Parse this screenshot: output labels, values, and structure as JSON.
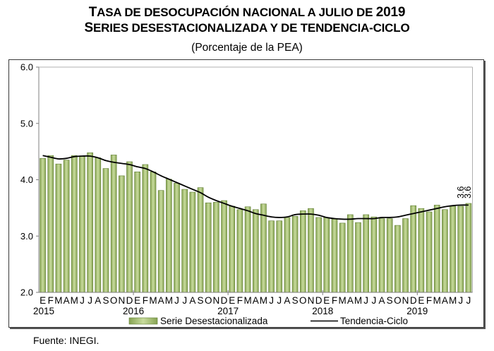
{
  "header": {
    "title_line1_first": "T",
    "title_line1_rest": "ASA DE DESOCUPACIÓN NACIONAL A JULIO DE ",
    "title_line1_year": "2019",
    "title_line2_first": "S",
    "title_line2_rest": "ERIES DESESTACIONALIZADA Y DE TENDENCIA-CICLO",
    "subtitle": "(Porcentaje de la PEA)"
  },
  "footer": {
    "source": "Fuente: INEGI."
  },
  "colors": {
    "bar_fill_light": "#c9dc9e",
    "bar_fill_dark": "#86a352",
    "bar_stroke": "#5f7d32",
    "trend_line": "#000000",
    "axis": "#7f7f7f"
  },
  "chart_data": {
    "type": "bar",
    "title": "Tasa de desocupación nacional a julio de 2019",
    "subtitle": "Series desestacionalizada y de tendencia-ciclo (Porcentaje de la PEA)",
    "xlabel": "",
    "ylabel": "",
    "ylim": [
      2.0,
      6.0
    ],
    "yticks": [
      "2.0",
      "3.0",
      "4.0",
      "5.0",
      "6.0"
    ],
    "ytick_values": [
      2.0,
      3.0,
      4.0,
      5.0,
      6.0
    ],
    "grid": false,
    "legend_position": "bottom",
    "month_letters": [
      "E",
      "F",
      "M",
      "A",
      "M",
      "J",
      "J",
      "A",
      "S",
      "O",
      "N",
      "D"
    ],
    "years": [
      "2015",
      "2016",
      "2017",
      "2018",
      "2019"
    ],
    "categories": [
      "E 2015",
      "F 2015",
      "M 2015",
      "A 2015",
      "M 2015",
      "J 2015",
      "J 2015",
      "A 2015",
      "S 2015",
      "O 2015",
      "N 2015",
      "D 2015",
      "E 2016",
      "F 2016",
      "M 2016",
      "A 2016",
      "M 2016",
      "J 2016",
      "J 2016",
      "A 2016",
      "S 2016",
      "O 2016",
      "N 2016",
      "D 2016",
      "E 2017",
      "F 2017",
      "M 2017",
      "A 2017",
      "M 2017",
      "J 2017",
      "J 2017",
      "A 2017",
      "S 2017",
      "O 2017",
      "N 2017",
      "D 2017",
      "E 2018",
      "F 2018",
      "M 2018",
      "A 2018",
      "M 2018",
      "J 2018",
      "J 2018",
      "A 2018",
      "S 2018",
      "O 2018",
      "N 2018",
      "D 2018",
      "E 2019",
      "F 2019",
      "M 2019",
      "A 2019",
      "M 2019",
      "J 2019",
      "J 2019"
    ],
    "series": [
      {
        "name": "Serie Desestacionalizada",
        "type": "bar",
        "values": [
          4.38,
          4.43,
          4.28,
          4.35,
          4.43,
          4.42,
          4.48,
          4.39,
          4.2,
          4.44,
          4.07,
          4.32,
          4.14,
          4.27,
          4.14,
          3.81,
          4.01,
          3.94,
          3.83,
          3.78,
          3.86,
          3.59,
          3.6,
          3.63,
          3.53,
          3.47,
          3.52,
          3.47,
          3.57,
          3.27,
          3.27,
          3.33,
          3.35,
          3.45,
          3.49,
          3.33,
          3.33,
          3.3,
          3.23,
          3.38,
          3.24,
          3.38,
          3.34,
          3.31,
          3.31,
          3.19,
          3.31,
          3.54,
          3.49,
          3.43,
          3.55,
          3.47,
          3.53,
          3.53,
          3.58
        ]
      },
      {
        "name": "Tendencia-Ciclo",
        "type": "line",
        "values": [
          4.43,
          4.4,
          4.37,
          4.38,
          4.41,
          4.42,
          4.42,
          4.39,
          4.34,
          4.31,
          4.29,
          4.27,
          4.23,
          4.2,
          4.14,
          4.07,
          4.01,
          3.95,
          3.89,
          3.83,
          3.77,
          3.69,
          3.63,
          3.58,
          3.53,
          3.49,
          3.45,
          3.4,
          3.37,
          3.34,
          3.33,
          3.34,
          3.38,
          3.39,
          3.39,
          3.37,
          3.33,
          3.31,
          3.3,
          3.3,
          3.31,
          3.31,
          3.31,
          3.33,
          3.33,
          3.34,
          3.37,
          3.4,
          3.43,
          3.46,
          3.49,
          3.52,
          3.54,
          3.55,
          3.55
        ]
      }
    ],
    "annotations": [
      {
        "series": "Serie Desestacionalizada",
        "category": "J 2019",
        "text": "3.6"
      },
      {
        "series": "Tendencia-Ciclo",
        "category": "J 2019",
        "text": "3.6"
      }
    ],
    "legend": [
      {
        "label": "Serie Desestacionalizada",
        "marker": "bar"
      },
      {
        "label": "Tendencia-Ciclo",
        "marker": "line"
      }
    ]
  }
}
